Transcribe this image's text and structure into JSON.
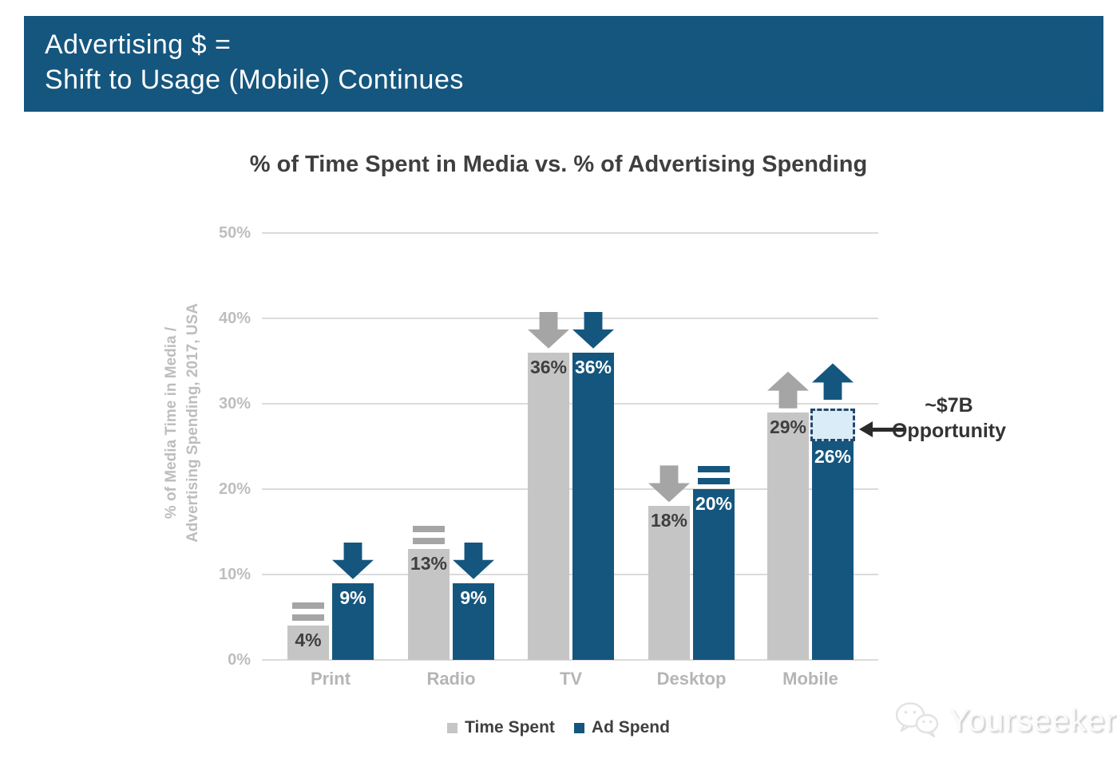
{
  "header": {
    "line1": "Advertising $ =",
    "line2": "Shift to Usage (Mobile) Continues"
  },
  "chart_data": {
    "type": "bar",
    "title": "% of Time Spent in Media vs. % of Advertising Spending",
    "ylabel_line1": "% of Media Time in Media /",
    "ylabel_line2": "Advertising Spending, 2017, USA",
    "ylim": [
      0,
      50
    ],
    "yticks": [
      {
        "value": 0,
        "label": "0%"
      },
      {
        "value": 10,
        "label": "10%"
      },
      {
        "value": 20,
        "label": "20%"
      },
      {
        "value": 30,
        "label": "30%"
      },
      {
        "value": 40,
        "label": "40%"
      },
      {
        "value": 50,
        "label": "50%"
      }
    ],
    "grid": true,
    "legend_position": "bottom",
    "categories": [
      "Print",
      "Radio",
      "TV",
      "Desktop",
      "Mobile"
    ],
    "series": [
      {
        "name": "Time Spent",
        "color": "#C5C5C5",
        "label_color": "#3F3F3F",
        "marker_color": "#A5A5A5",
        "values": [
          4,
          13,
          36,
          18,
          29
        ],
        "labels": [
          "4%",
          "13%",
          "36%",
          "18%",
          "29%"
        ],
        "trends": [
          "flat",
          "flat",
          "down",
          "down",
          "up"
        ]
      },
      {
        "name": "Ad Spend",
        "color": "#15567E",
        "label_color": "#FFFFFF",
        "marker_color": "#15567E",
        "values": [
          9,
          9,
          36,
          20,
          26
        ],
        "labels": [
          "9%",
          "9%",
          "36%",
          "20%",
          "26%"
        ],
        "trends": [
          "down",
          "down",
          "down",
          "flat",
          "up"
        ]
      }
    ],
    "annotation": {
      "line1": "~$7B",
      "line2": "Opportunity",
      "box_category": "Mobile",
      "box_series": "Ad Spend",
      "box_from_pct": 26,
      "box_to_pct": 29.4,
      "box_fill": "#D9ECF8",
      "box_border": "#24476B"
    },
    "legend": [
      {
        "label": "Time Spent",
        "color": "#C5C5C5"
      },
      {
        "label": "Ad Spend",
        "color": "#15567E"
      }
    ]
  },
  "colors": {
    "banner_bg": "#15567E",
    "banner_text": "#FFFFFF",
    "grid": "#DBDBDB",
    "axis_text": "#BEBEBE",
    "title_text": "#3F3F3F"
  },
  "watermark": {
    "text": "Yourseeker"
  }
}
